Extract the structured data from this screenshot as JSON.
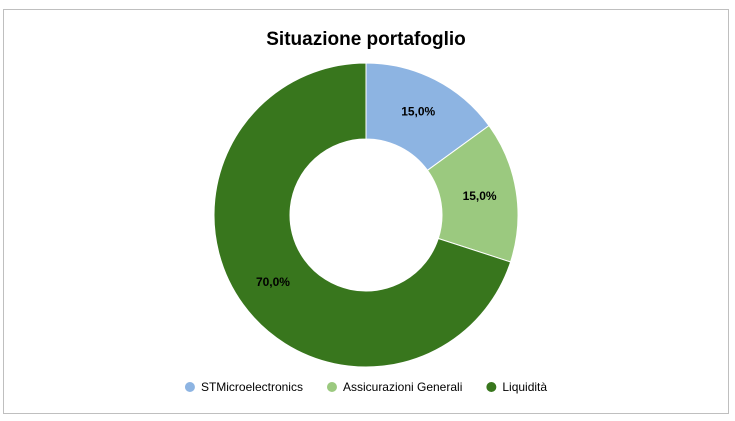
{
  "chart_data": {
    "type": "donut",
    "title": "Situazione portafoglio",
    "categories": [
      "STMicroelectronics",
      "Assicurazioni Generali",
      "Liquidità"
    ],
    "values": [
      15,
      15,
      70
    ],
    "value_labels": [
      "15,0%",
      "15,0%",
      "70,0%"
    ],
    "colors": [
      "#8db4e2",
      "#9bc97f",
      "#38761d"
    ]
  }
}
